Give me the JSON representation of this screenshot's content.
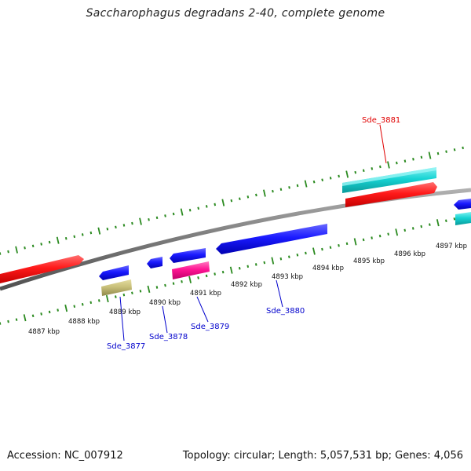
{
  "title": "Saccharophagus degradans 2-40, complete genome",
  "footer": {
    "accession": "Accession: NC_007912",
    "summary": "Topology: circular; Length: 5,057,531 bp; Genes: 4,056"
  },
  "colors": {
    "backbone": "#7a7a7a",
    "ticks": "#2a8a1f",
    "red": "#ff1a1a",
    "blue": "#1a1aff",
    "cyan": "#16d3d3",
    "magenta": "#ff1493",
    "olive": "#c9c07a",
    "label_red": "#e00000",
    "label_blue": "#0000cc"
  },
  "scale_labels": [
    "4887 kbp",
    "4888 kbp",
    "4889 kbp",
    "4890 kbp",
    "4891 kbp",
    "4892 kbp",
    "4893 kbp",
    "4894 kbp",
    "4895 kbp",
    "4896 kbp",
    "4897 kbp"
  ],
  "gene_labels": {
    "sde_3881": "Sde_3881",
    "sde_3877": "Sde_3877",
    "sde_3878": "Sde_3878",
    "sde_3879": "Sde_3879",
    "sde_3880": "Sde_3880"
  }
}
